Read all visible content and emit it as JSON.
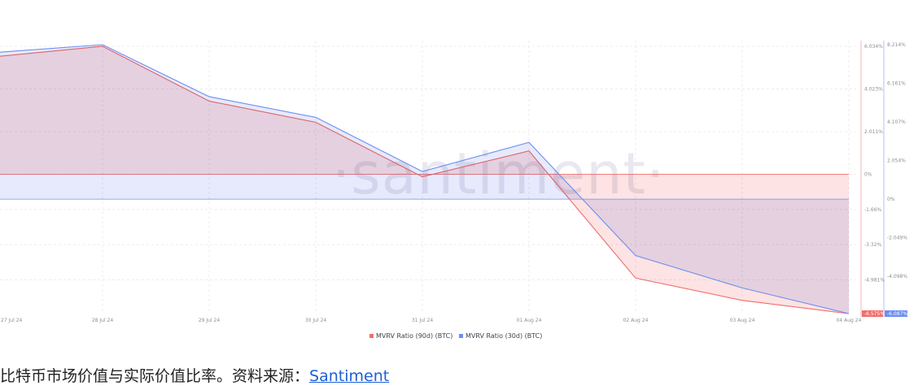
{
  "chart_data": {
    "type": "area",
    "categories": [
      "27 Jul 24",
      "28 Jul 24",
      "29 Jul 24",
      "30 Jul 24",
      "31 Jul 24",
      "01 Aug 24",
      "02 Aug 24",
      "03 Aug 24",
      "04 Aug 24"
    ],
    "series": [
      {
        "name": "MVRV Ratio (90d) (BTC)",
        "color": "#f26d6d",
        "fill": "#fde1e1",
        "axis": "left",
        "values": [
          5.55,
          6.034,
          3.45,
          2.45,
          -0.12,
          1.1,
          -4.9,
          -5.95,
          -6.575
        ],
        "last_label": "-6.575%"
      },
      {
        "name": "MVRV Ratio (30d) (BTC)",
        "color": "#6d8ef0",
        "fill": "#e3e6fb",
        "axis": "right",
        "values": [
          7.8,
          8.214,
          5.45,
          4.35,
          1.47,
          3.02,
          -3.0,
          -4.72,
          -6.087
        ],
        "last_label": "-6.087%"
      }
    ],
    "left_axis": {
      "ticks": [
        {
          "value": 6.034,
          "label": "6.034%"
        },
        {
          "value": 4.023,
          "label": "4.023%"
        },
        {
          "value": 2.011,
          "label": "2.011%"
        },
        {
          "value": 0,
          "label": "0%"
        },
        {
          "value": -1.66,
          "label": "-1.66%"
        },
        {
          "value": -3.32,
          "label": "-3.32%"
        },
        {
          "value": -4.981,
          "label": "-4.981%"
        }
      ],
      "range": [
        -6.575,
        6.034
      ]
    },
    "right_axis": {
      "ticks": [
        {
          "value": 8.214,
          "label": "8.214%"
        },
        {
          "value": 6.161,
          "label": "6.161%"
        },
        {
          "value": 4.107,
          "label": "4.107%"
        },
        {
          "value": 2.054,
          "label": "2.054%"
        },
        {
          "value": 0,
          "label": "0%"
        },
        {
          "value": -2.049,
          "label": "-2.049%"
        },
        {
          "value": -4.098,
          "label": "-4.098%"
        }
      ],
      "range": [
        -6.087,
        8.214
      ]
    },
    "watermark": "·santiment·",
    "legend_position": "bottom-center",
    "grid": true
  },
  "caption": {
    "text": "比特币市场价值与实际价值比率。资料来源：",
    "link": "Santiment"
  }
}
